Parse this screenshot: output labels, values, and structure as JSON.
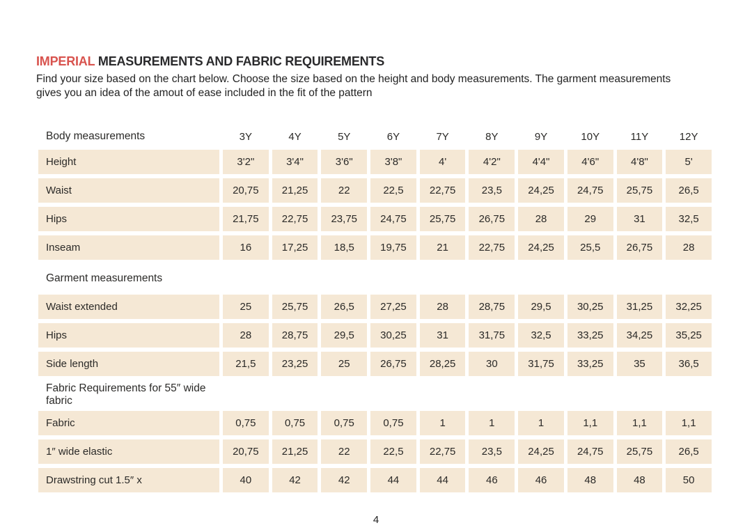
{
  "colors": {
    "accent": "#d8534e",
    "cell_bg": "#f5e8d5"
  },
  "header": {
    "title_accent": "IMPERIAL",
    "title_rest": " MEASUREMENTS AND FABRIC REQUIREMENTS",
    "intro_line1": "Find your size based on the chart below. Choose the size based on the height and body measurements. The garment measurements",
    "intro_line2": "gives you an idea of the amout of ease included in the fit of the pattern"
  },
  "table": {
    "columns": [
      "3Y",
      "4Y",
      "5Y",
      "6Y",
      "7Y",
      "8Y",
      "9Y",
      "10Y",
      "11Y",
      "12Y"
    ],
    "sections": [
      {
        "heading": "Body measurements",
        "show_columns": true,
        "rows": [
          {
            "label": "Height",
            "values": [
              "3'2\"",
              "3'4\"",
              "3'6\"",
              "3'8\"",
              "4'",
              "4'2\"",
              "4'4\"",
              "4'6\"",
              "4'8\"",
              "5'"
            ]
          },
          {
            "label": "Waist",
            "values": [
              "20,75",
              "21,25",
              "22",
              "22,5",
              "22,75",
              "23,5",
              "24,25",
              "24,75",
              "25,75",
              "26,5"
            ]
          },
          {
            "label": "Hips",
            "values": [
              "21,75",
              "22,75",
              "23,75",
              "24,75",
              "25,75",
              "26,75",
              "28",
              "29",
              "31",
              "32,5"
            ]
          },
          {
            "label": "Inseam",
            "values": [
              "16",
              "17,25",
              "18,5",
              "19,75",
              "21",
              "22,75",
              "24,25",
              "25,5",
              "26,75",
              "28"
            ]
          }
        ]
      },
      {
        "heading": "Garment measurements",
        "show_columns": false,
        "rows": [
          {
            "label": "Waist extended",
            "values": [
              "25",
              "25,75",
              "26,5",
              "27,25",
              "28",
              "28,75",
              "29,5",
              "30,25",
              "31,25",
              "32,25"
            ]
          },
          {
            "label": "Hips",
            "values": [
              "28",
              "28,75",
              "29,5",
              "30,25",
              "31",
              "31,75",
              "32,5",
              "33,25",
              "34,25",
              "35,25"
            ]
          },
          {
            "label": "Side length",
            "values": [
              "21,5",
              "23,25",
              "25",
              "26,75",
              "28,25",
              "30",
              "31,75",
              "33,25",
              "35",
              "36,5"
            ]
          }
        ]
      },
      {
        "heading": "Fabric Requirements for  55″ wide fabric",
        "show_columns": false,
        "rows": [
          {
            "label": "Fabric",
            "values": [
              "0,75",
              "0,75",
              "0,75",
              "0,75",
              "1",
              "1",
              "1",
              "1,1",
              "1,1",
              "1,1"
            ]
          },
          {
            "label": "1″ wide elastic",
            "values": [
              "20,75",
              "21,25",
              "22",
              "22,5",
              "22,75",
              "23,5",
              "24,25",
              "24,75",
              "25,75",
              "26,5"
            ]
          },
          {
            "label": "Drawstring cut 1.5″ x",
            "values": [
              "40",
              "42",
              "42",
              "44",
              "44",
              "46",
              "46",
              "48",
              "48",
              "50"
            ]
          }
        ]
      }
    ]
  },
  "footer": {
    "page_number": "4"
  }
}
